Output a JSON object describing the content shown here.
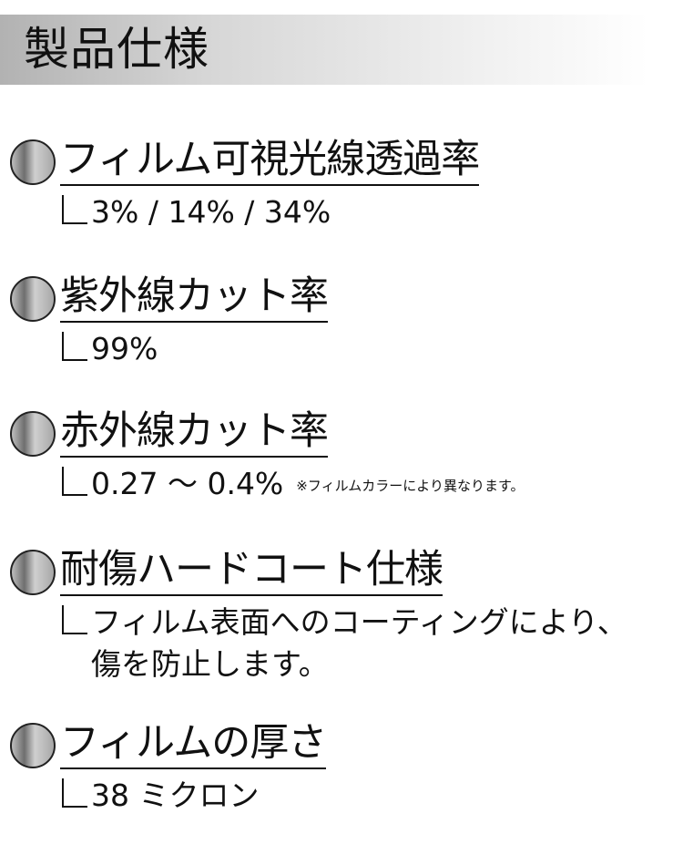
{
  "title": "製品仕様",
  "sections": [
    {
      "heading": "フィルム可視光線透過率",
      "value": "3% / 14% / 34%"
    },
    {
      "heading": "紫外線カット率",
      "value": "99%"
    },
    {
      "heading": "赤外線カット率",
      "value": "0.27 ～ 0.4%",
      "note": "※フィルムカラーにより異なります。"
    },
    {
      "heading": "耐傷ハードコート仕様",
      "value": "フィルム表面へのコーティングにより、",
      "value2": "傷を防止します。"
    },
    {
      "heading": "フィルムの厚さ",
      "value": "38 ミクロン"
    }
  ]
}
